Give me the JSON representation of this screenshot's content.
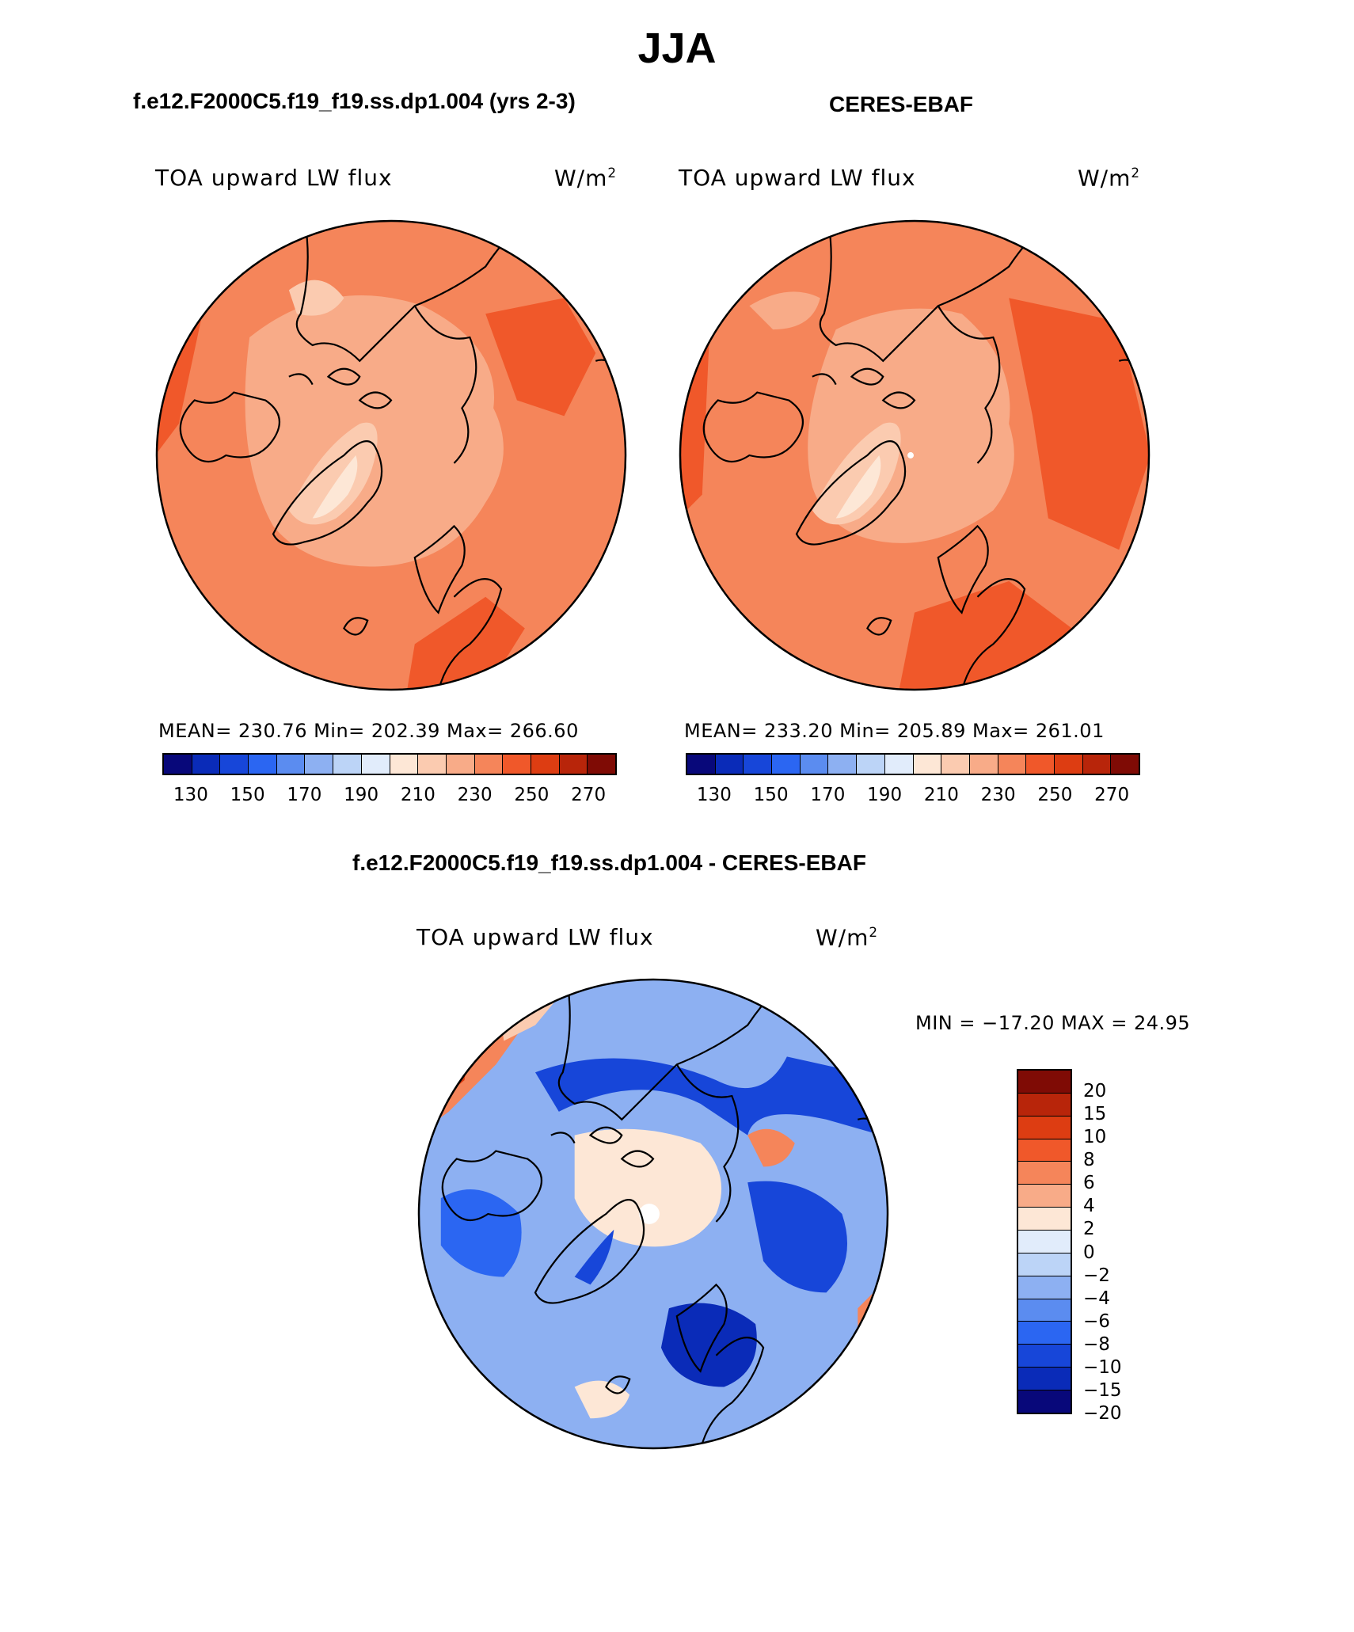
{
  "title": "JJA",
  "palette_abs": [
    "#08087a",
    "#0a2bb8",
    "#1746d9",
    "#2b66f2",
    "#5b8cf0",
    "#8db0f2",
    "#bcd4f7",
    "#e1ecfb",
    "#fde7d6",
    "#fbcbb0",
    "#f8ab88",
    "#f5855a",
    "#f0582a",
    "#dd3d12",
    "#b8250a",
    "#7f0b05"
  ],
  "palette_diff": [
    "#7f0b05",
    "#b8250a",
    "#dd3d12",
    "#f0582a",
    "#f5855a",
    "#f8ab88",
    "#fde7d6",
    "#e1ecfb",
    "#bcd4f7",
    "#8db0f2",
    "#5b8cf0",
    "#2b66f2",
    "#1746d9",
    "#0a2bb8",
    "#08087a"
  ],
  "panels": [
    {
      "heading": "f.e12.F2000C5.f19_f19.ss.dp1.004 (yrs 2-3)",
      "left_label": "TOA upward LW flux",
      "units": "W/m",
      "units_sup": "2",
      "stats": "MEAN= 230.76   Min= 202.39   Max= 266.60",
      "ticks": [
        "130",
        "150",
        "170",
        "190",
        "210",
        "230",
        "250",
        "270"
      ]
    },
    {
      "heading": "CERES-EBAF",
      "left_label": "TOA upward LW flux",
      "units": "W/m",
      "units_sup": "2",
      "stats": "MEAN= 233.20   Min= 205.89   Max= 261.01",
      "ticks": [
        "130",
        "150",
        "170",
        "190",
        "210",
        "230",
        "250",
        "270"
      ]
    }
  ],
  "diff_panel": {
    "heading": "f.e12.F2000C5.f19_f19.ss.dp1.004 - CERES-EBAF",
    "left_label": "TOA upward LW flux",
    "units": "W/m",
    "units_sup": "2",
    "stats": "MIN = −17.20 MAX =  24.95",
    "ticks": [
      "20",
      "15",
      "10",
      "8",
      "6",
      "4",
      "2",
      "0",
      "−2",
      "−4",
      "−6",
      "−8",
      "−10",
      "−15",
      "−20"
    ]
  }
}
